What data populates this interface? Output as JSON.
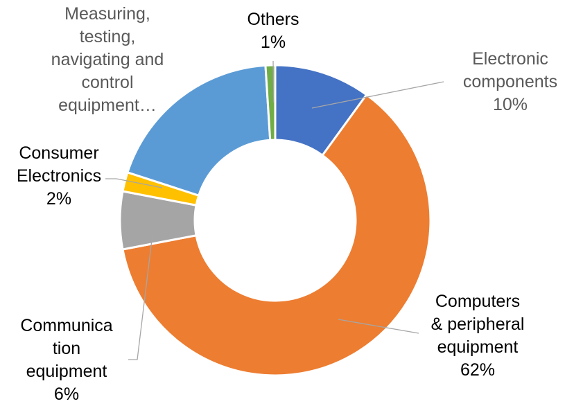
{
  "chart_data": {
    "type": "pie",
    "variant": "doughnut",
    "title": "",
    "legend": "none",
    "categories": [
      "Electronic components",
      "Computers & peripheral equipment",
      "Communication equipment",
      "Consumer Electronics",
      "Measuring, testing, navigating and control equipment",
      "Others"
    ],
    "values": [
      10,
      62,
      6,
      2,
      19,
      1
    ],
    "colors": [
      "#4472C4",
      "#ED7D31",
      "#A5A5A5",
      "#FFC000",
      "#5B9BD5",
      "#70AD47"
    ],
    "data_labels": [
      {
        "lines": [
          "Electronic",
          "components",
          "10%"
        ],
        "tone": "gray"
      },
      {
        "lines": [
          "Computers",
          "& peripheral",
          "equipment",
          "62%"
        ],
        "tone": "dark"
      },
      {
        "lines": [
          "Communica",
          "tion",
          "equipment",
          "6%"
        ],
        "tone": "dark"
      },
      {
        "lines": [
          "Consumer",
          "Electronics",
          "2%"
        ],
        "tone": "dark"
      },
      {
        "lines": [
          "Measuring,",
          "testing,",
          "navigating and",
          "control",
          "equipment…"
        ],
        "tone": "gray"
      },
      {
        "lines": [
          "Others",
          "1%"
        ],
        "tone": "dark"
      }
    ]
  }
}
